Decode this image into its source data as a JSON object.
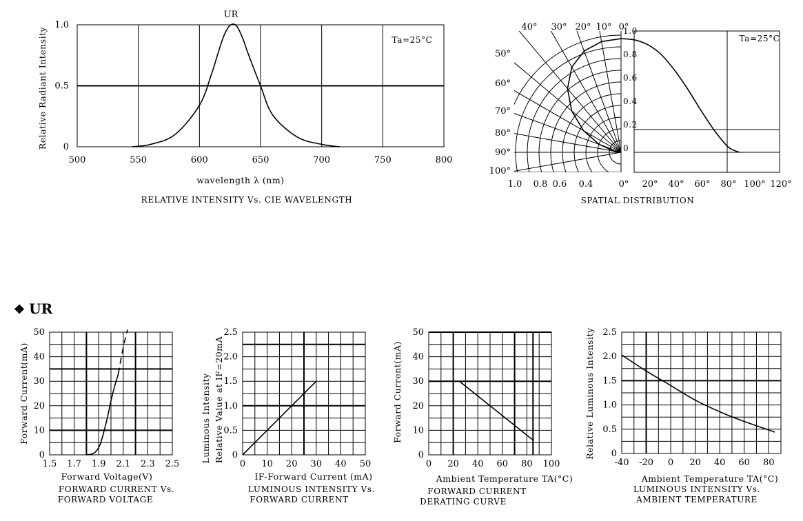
{
  "section": {
    "bullet": "❖",
    "title": "UR"
  },
  "chart_data": [
    {
      "id": "wavelength",
      "type": "line",
      "title": "UR",
      "caption": "RELATIVE INTENSITY Vs. CIE WAVELENGTH",
      "xlabel": "wavelength λ (nm)",
      "ylabel": "Relative Radiant Intensity",
      "annotation": "Ta=25°C",
      "xlim": [
        500,
        800
      ],
      "ylim": [
        0,
        1
      ],
      "x_ticks": [
        "500",
        "550",
        "600",
        "650",
        "700",
        "750",
        "800"
      ],
      "y_ticks": [
        "0",
        "0.5",
        "1.0"
      ],
      "series": [
        {
          "x": [
            545,
            560,
            580,
            600,
            610,
            615,
            620,
            625,
            630,
            635,
            640,
            650,
            660,
            680,
            700,
            715
          ],
          "y": [
            0,
            0.02,
            0.1,
            0.34,
            0.6,
            0.76,
            0.91,
            0.995,
            0.995,
            0.9,
            0.76,
            0.5,
            0.26,
            0.08,
            0.02,
            0
          ]
        }
      ]
    },
    {
      "id": "spatial",
      "type": "polar",
      "caption": "SPATIAL DISTRIBUTION",
      "annotation": "Ta=25°C",
      "angle_labels_top": [
        "40°",
        "30°",
        "20°",
        "10°",
        "0°"
      ],
      "angle_labels_left": [
        "50°",
        "60°",
        "70°",
        "80°",
        "90°",
        "100°"
      ],
      "radius_labels_bottom": [
        "1.0",
        "0.8",
        "0.6",
        "0.4"
      ],
      "x_ticks": [
        "0°",
        "20°",
        "40°",
        "60°",
        "80°",
        "100°",
        "120°"
      ],
      "y_ticks": [
        "0",
        "0.2",
        "0.4",
        "0.6",
        "0.8",
        "1.0"
      ],
      "xlim": [
        0,
        120
      ],
      "ylim": [
        0,
        1
      ],
      "series": [
        {
          "x": [
            0,
            10,
            20,
            30,
            40,
            50,
            60,
            70,
            80,
            85,
            90
          ],
          "y": [
            0.97,
            0.96,
            0.92,
            0.84,
            0.71,
            0.55,
            0.37,
            0.2,
            0.06,
            0.02,
            0
          ]
        }
      ]
    },
    {
      "id": "forward-voltage",
      "type": "line",
      "caption": [
        "FORWARD CURRENT Vs.",
        "FORWARD VOLTAGE"
      ],
      "xlabel": "Forward Voltage(V)",
      "ylabel": "Forward Current(mA)",
      "xlim": [
        1.5,
        2.5
      ],
      "ylim": [
        0,
        50
      ],
      "x_ticks": [
        "1.5",
        "1.7",
        "1.9",
        "2.1",
        "2.3",
        "2.5"
      ],
      "y_ticks": [
        "0",
        "10",
        "20",
        "30",
        "40",
        "50"
      ],
      "series": [
        {
          "x": [
            1.8,
            1.85,
            1.88,
            1.91,
            1.94,
            1.97,
            2.0,
            2.03,
            2.06
          ],
          "y": [
            0,
            0.4,
            1.5,
            4,
            9,
            15,
            22,
            28,
            33
          ]
        },
        {
          "dashed": true,
          "x": [
            2.06,
            2.085,
            2.11,
            2.135
          ],
          "y": [
            33,
            40,
            46,
            51
          ]
        }
      ]
    },
    {
      "id": "luminous-current",
      "type": "line",
      "caption": [
        "LUMINOUS INTENSITY Vs.",
        "FORWARD CURRENT"
      ],
      "xlabel": "IF-Forward Current (mA)",
      "ylabel": [
        "Luminous Intensity",
        "Relative Value at IF=20mA"
      ],
      "xlim": [
        0,
        50
      ],
      "ylim": [
        0,
        2.5
      ],
      "x_ticks": [
        "0",
        "10",
        "20",
        "30",
        "40",
        "50"
      ],
      "y_ticks": [
        "0",
        "0.5",
        "1.0",
        "1.5",
        "2.0",
        "2.5"
      ],
      "series": [
        {
          "x": [
            0,
            30
          ],
          "y": [
            0,
            1.5
          ]
        }
      ]
    },
    {
      "id": "derating",
      "type": "line",
      "caption": [
        "FORWARD CURRENT",
        "DERATING CURVE"
      ],
      "xlabel": "Ambient Temperature TA(°C)",
      "ylabel": "Forward Current(mA)",
      "xlim": [
        0,
        100
      ],
      "ylim": [
        0,
        50
      ],
      "x_ticks": [
        "0",
        "20",
        "40",
        "60",
        "80",
        "100"
      ],
      "y_ticks": [
        "0",
        "10",
        "20",
        "30",
        "40",
        "50"
      ],
      "series": [
        {
          "x": [
            0,
            25,
            85,
            85
          ],
          "y": [
            30,
            30,
            6,
            0
          ]
        }
      ]
    },
    {
      "id": "luminous-temp",
      "type": "line",
      "caption": [
        "LUMINOUS INTENSITY Vs.",
        "AMBIENT TEMPERATURE"
      ],
      "xlabel": "Ambient Temperature TA(°C)",
      "ylabel": "Relative Luminous Intensity",
      "xlim": [
        -40,
        90
      ],
      "ylim": [
        0,
        2.5
      ],
      "x_ticks": [
        "-40",
        "-20",
        "0",
        "20",
        "40",
        "60",
        "80"
      ],
      "y_ticks": [
        "0",
        "0.5",
        "1.0",
        "1.5",
        "2.0",
        "2.5"
      ],
      "series": [
        {
          "x": [
            -40,
            -20,
            0,
            20,
            40,
            60,
            85
          ],
          "y": [
            2.03,
            1.7,
            1.4,
            1.1,
            0.86,
            0.66,
            0.44
          ]
        }
      ]
    }
  ]
}
